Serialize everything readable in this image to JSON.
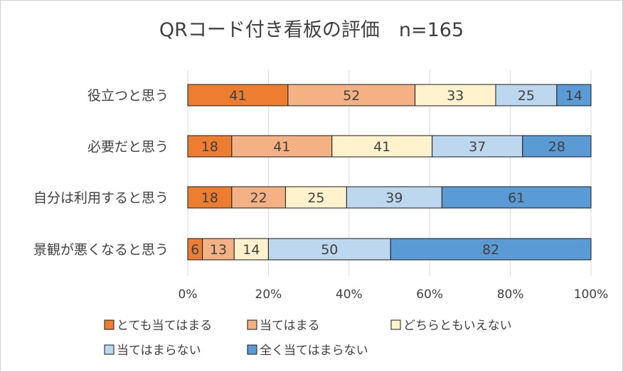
{
  "chart_data": {
    "type": "bar",
    "orientation": "horizontal",
    "stacked": "percent",
    "title": "QRコード付き看板の評価　n=165",
    "categories": [
      "役立つと思う",
      "必要だと思う",
      "自分は利用すると思う",
      "景観が悪くなると思う"
    ],
    "series": [
      {
        "name": "とても当てはまる",
        "color": "#ED7D31",
        "values": [
          41,
          18,
          18,
          6
        ]
      },
      {
        "name": "当てはまる",
        "color": "#F4B183",
        "values": [
          52,
          41,
          22,
          13
        ]
      },
      {
        "name": "どちらともいえない",
        "color": "#FFF2CC",
        "values": [
          33,
          41,
          25,
          14
        ]
      },
      {
        "name": "当てはまらない",
        "color": "#BDD7EE",
        "values": [
          25,
          37,
          39,
          50
        ]
      },
      {
        "name": "全く当てはまらない",
        "color": "#5B9BD5",
        "values": [
          14,
          28,
          61,
          82
        ]
      }
    ],
    "x_ticks": [
      "0%",
      "20%",
      "40%",
      "60%",
      "80%",
      "100%"
    ],
    "xlim": [
      0,
      100
    ],
    "grid": true,
    "legend_position": "bottom"
  }
}
